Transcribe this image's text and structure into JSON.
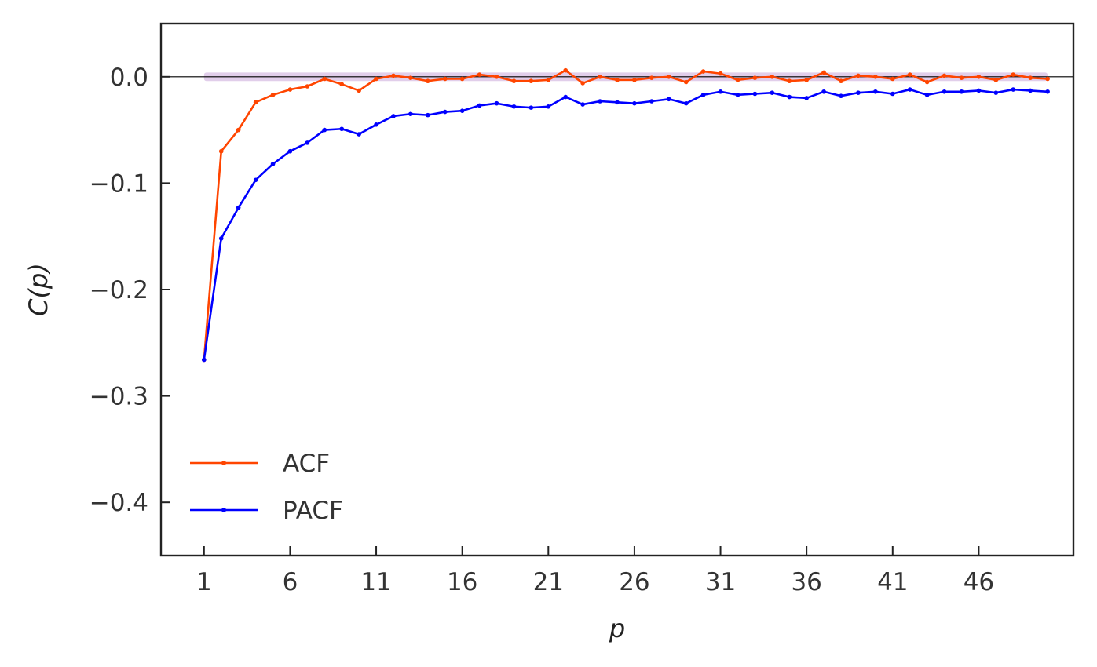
{
  "chart_data": {
    "type": "line",
    "xlabel": "p",
    "ylabel": "C(p)",
    "xlim": [
      -1.5,
      51.5
    ],
    "ylim": [
      -0.45,
      0.05
    ],
    "xticks": [
      1,
      6,
      11,
      16,
      21,
      26,
      31,
      36,
      41,
      46
    ],
    "yticks": [
      0.0,
      -0.1,
      -0.2,
      -0.3,
      -0.4
    ],
    "ytick_labels": [
      "0.0",
      "−0.1",
      "−0.2",
      "−0.3",
      "−0.4"
    ],
    "grid": false,
    "legend_position": "lower-left",
    "zero_line": true,
    "confidence_band": {
      "lower": -0.004,
      "upper": 0.004,
      "color": "#c9a6d8"
    },
    "x": [
      1,
      2,
      3,
      4,
      5,
      6,
      7,
      8,
      9,
      10,
      11,
      12,
      13,
      14,
      15,
      16,
      17,
      18,
      19,
      20,
      21,
      22,
      23,
      24,
      25,
      26,
      27,
      28,
      29,
      30,
      31,
      32,
      33,
      34,
      35,
      36,
      37,
      38,
      39,
      40,
      41,
      42,
      43,
      44,
      45,
      46,
      47,
      48,
      49,
      50
    ],
    "series": [
      {
        "name": "ACF",
        "color": "#ff4500",
        "values": [
          -0.266,
          -0.07,
          -0.05,
          -0.024,
          -0.017,
          -0.012,
          -0.009,
          -0.002,
          -0.007,
          -0.013,
          -0.002,
          0.001,
          -0.001,
          -0.004,
          -0.002,
          -0.002,
          0.002,
          0.0,
          -0.004,
          -0.004,
          -0.003,
          0.006,
          -0.006,
          0.0,
          -0.003,
          -0.003,
          -0.001,
          0.0,
          -0.005,
          0.005,
          0.003,
          -0.003,
          -0.001,
          0.0,
          -0.004,
          -0.003,
          0.004,
          -0.004,
          0.001,
          0.0,
          -0.002,
          0.002,
          -0.005,
          0.001,
          -0.001,
          0.0,
          -0.003,
          0.002,
          -0.001,
          -0.002
        ]
      },
      {
        "name": "PACF",
        "color": "#0000ff",
        "values": [
          -0.266,
          -0.152,
          -0.123,
          -0.097,
          -0.082,
          -0.07,
          -0.062,
          -0.05,
          -0.049,
          -0.054,
          -0.045,
          -0.037,
          -0.035,
          -0.036,
          -0.033,
          -0.032,
          -0.027,
          -0.025,
          -0.028,
          -0.029,
          -0.028,
          -0.019,
          -0.026,
          -0.023,
          -0.024,
          -0.025,
          -0.023,
          -0.021,
          -0.025,
          -0.017,
          -0.014,
          -0.017,
          -0.016,
          -0.015,
          -0.019,
          -0.02,
          -0.014,
          -0.018,
          -0.015,
          -0.014,
          -0.016,
          -0.012,
          -0.017,
          -0.014,
          -0.014,
          -0.013,
          -0.015,
          -0.012,
          -0.013,
          -0.014
        ]
      }
    ]
  }
}
